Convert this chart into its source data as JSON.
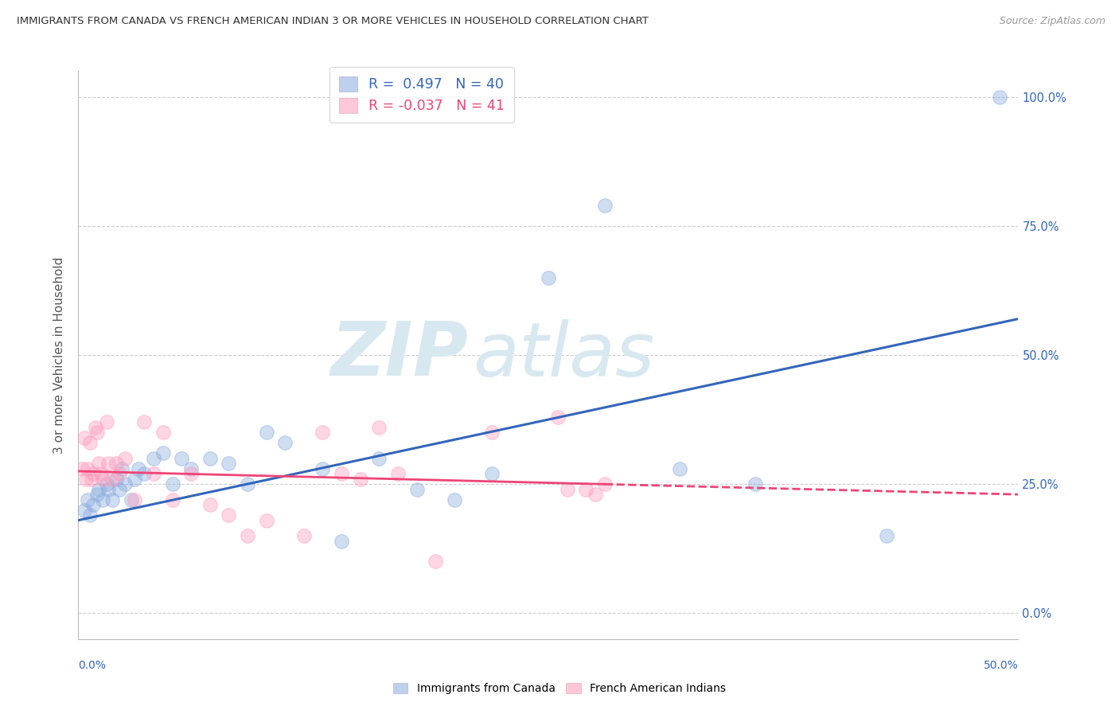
{
  "title": "IMMIGRANTS FROM CANADA VS FRENCH AMERICAN INDIAN 3 OR MORE VEHICLES IN HOUSEHOLD CORRELATION CHART",
  "source": "Source: ZipAtlas.com",
  "ylabel": "3 or more Vehicles in Household",
  "xlim": [
    0.0,
    50.0
  ],
  "ylim": [
    -5.0,
    105.0
  ],
  "blue_color": "#88AADD",
  "pink_color": "#FF99BB",
  "blue_line_color": "#3366BB",
  "pink_line_color": "#EE4477",
  "background_color": "#FFFFFF",
  "watermark_zip": "ZIP",
  "watermark_atlas": "atlas",
  "legend_r1": "R =  0.497",
  "legend_n1": "N = 40",
  "legend_r2": "R = -0.037",
  "legend_n2": "N = 41",
  "blue_x": [
    0.3,
    0.5,
    0.6,
    0.8,
    1.0,
    1.1,
    1.3,
    1.5,
    1.6,
    1.8,
    2.0,
    2.2,
    2.3,
    2.5,
    2.8,
    3.0,
    3.2,
    3.5,
    4.0,
    4.5,
    5.0,
    5.5,
    6.0,
    7.0,
    8.0,
    9.0,
    10.0,
    11.0,
    13.0,
    14.0,
    16.0,
    18.0,
    20.0,
    22.0,
    25.0,
    28.0,
    32.0,
    36.0,
    43.0,
    49.0
  ],
  "blue_y": [
    20,
    22,
    19,
    21,
    23,
    24,
    22,
    25,
    24,
    22,
    26,
    24,
    28,
    25,
    22,
    26,
    28,
    27,
    30,
    31,
    25,
    30,
    28,
    30,
    29,
    25,
    35,
    33,
    28,
    14,
    30,
    24,
    22,
    27,
    65,
    79,
    28,
    25,
    15,
    100
  ],
  "pink_x": [
    0.2,
    0.3,
    0.4,
    0.5,
    0.6,
    0.7,
    0.8,
    0.9,
    1.0,
    1.1,
    1.2,
    1.3,
    1.5,
    1.6,
    1.8,
    2.0,
    2.2,
    2.5,
    3.0,
    3.5,
    4.0,
    4.5,
    5.0,
    6.0,
    7.0,
    8.0,
    9.0,
    10.0,
    12.0,
    13.0,
    14.0,
    15.0,
    16.0,
    17.0,
    19.0,
    22.0,
    25.5,
    26.0,
    27.0,
    27.5,
    28.0
  ],
  "pink_y": [
    28,
    34,
    26,
    28,
    33,
    26,
    27,
    36,
    35,
    29,
    27,
    26,
    37,
    29,
    26,
    29,
    27,
    30,
    22,
    37,
    27,
    35,
    22,
    27,
    21,
    19,
    15,
    18,
    15,
    35,
    27,
    26,
    36,
    27,
    10,
    35,
    38,
    24,
    24,
    23,
    25
  ],
  "blue_line_x0": 0,
  "blue_line_y0": 18.0,
  "blue_line_x1": 50,
  "blue_line_y1": 57.0,
  "pink_line_x0": 0,
  "pink_line_y0": 27.5,
  "pink_line_x1": 50,
  "pink_line_y1": 23.0,
  "yticks": [
    0,
    25,
    50,
    75,
    100
  ],
  "xticks": [
    0,
    5,
    10,
    15,
    20,
    25,
    30,
    35,
    40,
    45,
    50
  ]
}
